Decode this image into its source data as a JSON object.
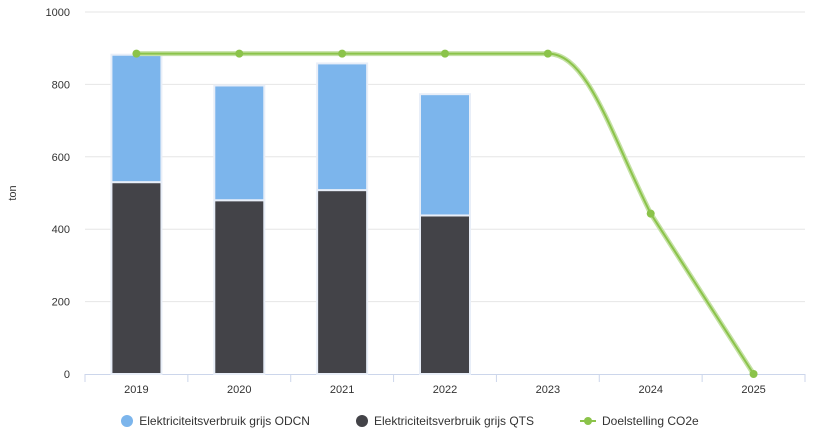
{
  "chart_data": {
    "type": "bar",
    "stacked": true,
    "ylabel": "ton",
    "ylim": [
      0,
      1000
    ],
    "yticks": [
      "0",
      "200",
      "400",
      "600",
      "800",
      "1000"
    ],
    "categories": [
      "2019",
      "2020",
      "2021",
      "2022",
      "2023",
      "2024",
      "2025"
    ],
    "series": [
      {
        "name": "Elektriciteitsverbruik grijs QTS",
        "kind": "bar",
        "color": "#434348",
        "values": [
          530,
          480,
          508,
          438,
          null,
          null,
          null
        ]
      },
      {
        "name": "Elektriciteitsverbruik grijs ODCN",
        "kind": "bar",
        "color": "#7cb5ec",
        "values": [
          352,
          317,
          350,
          335,
          null,
          null,
          null
        ]
      },
      {
        "name": "Doelstelling CO2e",
        "kind": "line",
        "color": "#8bc34a",
        "values": [
          885,
          885,
          885,
          885,
          885,
          443,
          0
        ]
      }
    ],
    "grid": true,
    "legend_position": "bottom"
  },
  "legend": [
    {
      "label": "Elektriciteitsverbruik grijs ODCN",
      "color": "#7cb5ec",
      "shape": "dot"
    },
    {
      "label": "Elektriciteitsverbruik grijs QTS",
      "color": "#434348",
      "shape": "dot"
    },
    {
      "label": "Doelstelling CO2e",
      "color": "#8bc34a",
      "shape": "line"
    }
  ]
}
